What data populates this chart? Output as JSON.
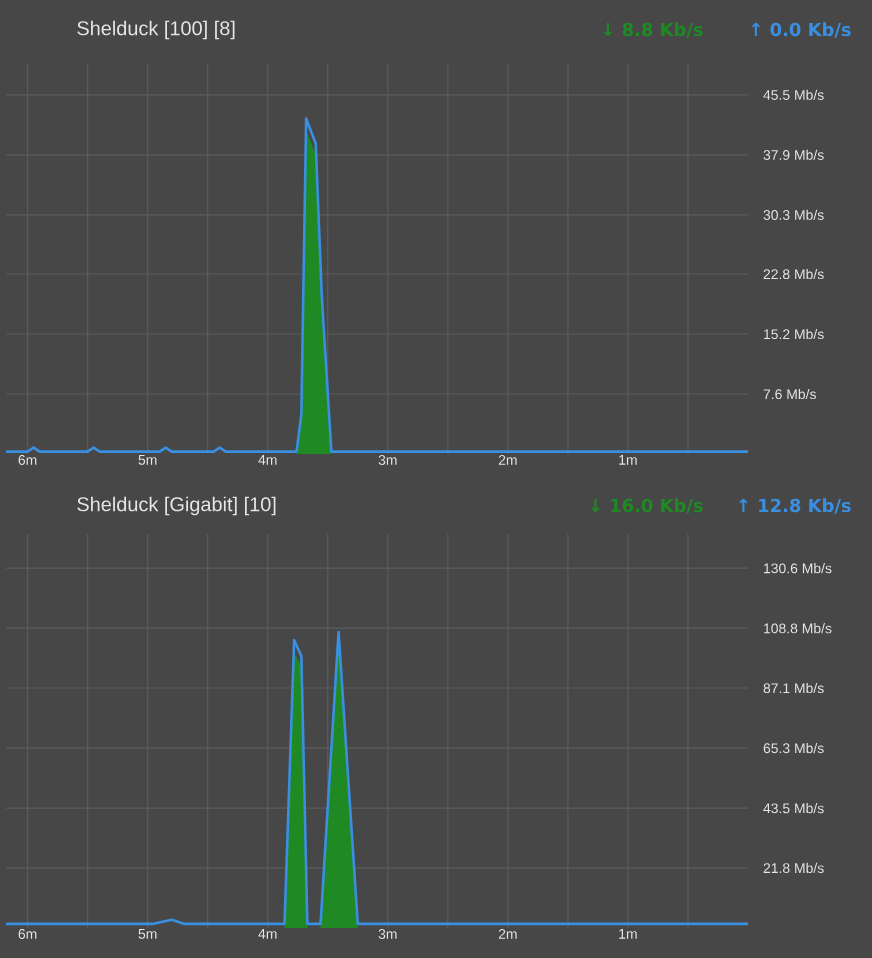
{
  "chart_data": [
    {
      "type": "area",
      "title": "Shelduck [100] [8]",
      "annotations": [
        "↓ 8.8 Kb/s",
        "↑ 0.0 Kb/s"
      ],
      "xlim": [
        6.18,
        0
      ],
      "xticks": [
        {
          "value": 6,
          "label": "6m"
        },
        {
          "value": 5.5,
          "label": null
        },
        {
          "value": 5,
          "label": "5m"
        },
        {
          "value": 4.5,
          "label": null
        },
        {
          "value": 4,
          "label": "4m"
        },
        {
          "value": 3.5,
          "label": null
        },
        {
          "value": 3,
          "label": "3m"
        },
        {
          "value": 2.5,
          "label": null
        },
        {
          "value": 2,
          "label": "2m"
        },
        {
          "value": 1.5,
          "label": null
        },
        {
          "value": 1,
          "label": "1m"
        },
        {
          "value": 0.5,
          "label": null
        }
      ],
      "ylim": [
        0,
        49.4
      ],
      "yticks": [
        {
          "value": 7.6,
          "label": "7.6 Mb/s"
        },
        {
          "value": 15.2,
          "label": "15.2 Mb/s"
        },
        {
          "value": 22.8,
          "label": "22.8 Mb/s"
        },
        {
          "value": 30.3,
          "label": "30.3 Mb/s"
        },
        {
          "value": 37.9,
          "label": "37.9 Mb/s"
        },
        {
          "value": 45.5,
          "label": "45.5 Mb/s"
        }
      ],
      "grid": true,
      "series": [
        {
          "type": "area",
          "color": "#1f8a24",
          "x": [
            6.18,
            3.76,
            3.72,
            3.68,
            3.6,
            3.55,
            3.47,
            0
          ],
          "values": [
            0,
            0,
            5,
            41,
            38,
            18,
            0,
            0
          ]
        },
        {
          "type": "line",
          "color": "#3a8fe0",
          "x": [
            6.18,
            6.0,
            5.95,
            5.9,
            5.5,
            5.45,
            5.4,
            4.9,
            4.85,
            4.8,
            4.45,
            4.4,
            4.35,
            3.76,
            3.72,
            3.68,
            3.6,
            3.55,
            3.47,
            0
          ],
          "values": [
            0.3,
            0.3,
            0.8,
            0.3,
            0.3,
            0.8,
            0.3,
            0.3,
            0.8,
            0.3,
            0.3,
            0.8,
            0.3,
            0.3,
            5,
            42.5,
            39.3,
            20,
            0.3,
            0.3
          ]
        }
      ]
    },
    {
      "type": "area",
      "title": "Shelduck [Gigabit] [10]",
      "annotations": [
        "↓ 16.0 Kb/s",
        "↑ 12.8 Kb/s"
      ],
      "xlim": [
        6.18,
        0
      ],
      "xticks": [
        {
          "value": 6,
          "label": "6m"
        },
        {
          "value": 5.5,
          "label": null
        },
        {
          "value": 5,
          "label": "5m"
        },
        {
          "value": 4.5,
          "label": null
        },
        {
          "value": 4,
          "label": "4m"
        },
        {
          "value": 3.5,
          "label": null
        },
        {
          "value": 3,
          "label": "3m"
        },
        {
          "value": 2.5,
          "label": null
        },
        {
          "value": 2,
          "label": "2m"
        },
        {
          "value": 1.5,
          "label": null
        },
        {
          "value": 1,
          "label": "1m"
        },
        {
          "value": 0.5,
          "label": null
        }
      ],
      "ylim": [
        0,
        143
      ],
      "yticks": [
        {
          "value": 21.8,
          "label": "21.8 Mb/s"
        },
        {
          "value": 43.5,
          "label": "43.5 Mb/s"
        },
        {
          "value": 65.3,
          "label": "65.3 Mb/s"
        },
        {
          "value": 87.1,
          "label": "87.1 Mb/s"
        },
        {
          "value": 108.8,
          "label": "108.8 Mb/s"
        },
        {
          "value": 130.6,
          "label": "130.6 Mb/s"
        }
      ],
      "grid": true,
      "series": [
        {
          "type": "area",
          "color": "#1f8a24",
          "x": [
            6.18,
            3.86,
            3.78,
            3.72,
            3.67,
            3.56,
            3.41,
            3.25,
            0
          ],
          "values": [
            0,
            0,
            100,
            95,
            0,
            0,
            103,
            0,
            0
          ]
        },
        {
          "type": "line",
          "color": "#3a8fe0",
          "x": [
            6.18,
            4.95,
            4.8,
            4.7,
            3.86,
            3.78,
            3.72,
            3.67,
            3.56,
            3.41,
            3.25,
            0
          ],
          "values": [
            1.5,
            1.5,
            3,
            1.5,
            1.5,
            104.5,
            98.7,
            1.5,
            1.5,
            107.4,
            1.5,
            1.5
          ]
        }
      ]
    }
  ]
}
